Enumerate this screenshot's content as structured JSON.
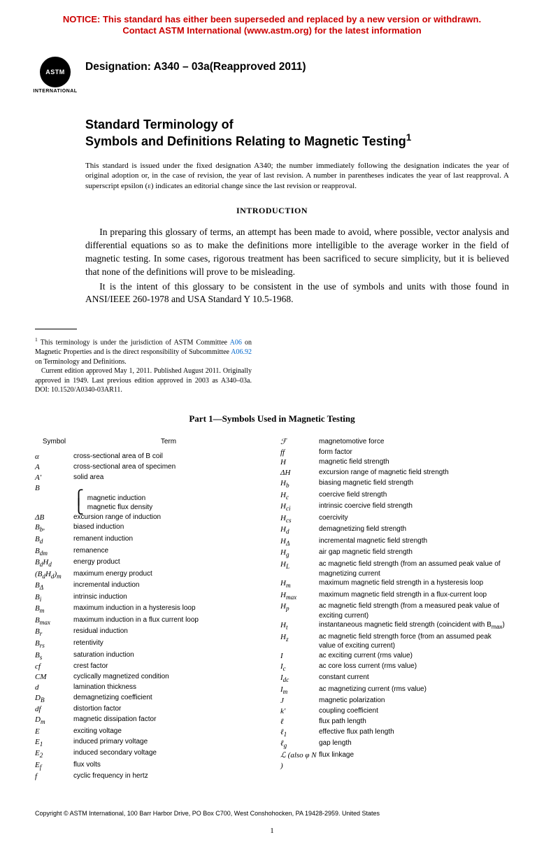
{
  "notice": {
    "line1": "NOTICE: This standard has either been superseded and replaced by a new version or withdrawn.",
    "line2": "Contact ASTM International (www.astm.org) for the latest information",
    "color": "#cc0000"
  },
  "logo": {
    "text": "ASTM",
    "label": "INTERNATIONAL"
  },
  "designation": "Designation: A340 – 03a(Reapproved 2011)",
  "title": {
    "l1": "Standard Terminology of",
    "l2": "Symbols and Definitions Relating to Magnetic Testing",
    "sup": "1"
  },
  "issuance": "This standard is issued under the fixed designation A340; the number immediately following the designation indicates the year of original adoption or, in the case of revision, the year of last revision. A number in parentheses indicates the year of last reapproval. A superscript epsilon (ε) indicates an editorial change since the last revision or reapproval.",
  "intro": {
    "head": "INTRODUCTION",
    "p1": "In preparing this glossary of terms, an attempt has been made to avoid, where possible, vector analysis and differential equations so as to make the definitions more intelligible to the average worker in the field of magnetic testing. In some cases, rigorous treatment has been sacrificed to secure simplicity, but it is believed that none of the definitions will prove to be misleading.",
    "p2": "It is the intent of this glossary to be consistent in the use of symbols and units with those found in ANSI/IEEE 260-1978 and USA Standard Y 10.5-1968."
  },
  "footnote": {
    "p1a": "This terminology is under the jurisdiction of ASTM Committee ",
    "a06": "A06",
    "p1b": " on Magnetic Properties and is the direct responsibility of Subcommittee ",
    "a0692": "A06.92",
    "p1c": " on Terminology and Definitions.",
    "p2": "Current edition approved May 1, 2011. Published August 2011. Originally approved in 1949. Last previous edition approved in 2003 as A340–03a. DOI: 10.1520/A0340-03AR11."
  },
  "part_head": "Part 1—Symbols Used in Magnetic Testing",
  "colhead": {
    "sym": "Symbol",
    "term": "Term"
  },
  "left": [
    {
      "s": "α",
      "t": "cross-sectional area of B coil"
    },
    {
      "s": "A",
      "t": "cross-sectional area of specimen"
    },
    {
      "s": "A′",
      "t": "solid area"
    },
    {
      "s": "B",
      "t": ""
    },
    {
      "s": "",
      "t": "magnetic induction",
      "brace": "top"
    },
    {
      "s": "",
      "t": "magnetic flux density",
      "brace": "bot"
    },
    {
      "s": "ΔB",
      "t": "excursion range of induction"
    },
    {
      "s": "B<sub>b</sub>,",
      "t": "biased induction"
    },
    {
      "s": "B<sub>d</sub>",
      "t": "remanent induction"
    },
    {
      "s": "B<sub>dm</sub>",
      "t": "remanence"
    },
    {
      "s": "B<sub>d</sub>H<sub>d</sub>",
      "t": "energy product"
    },
    {
      "s": "(B<sub>d</sub>H<sub>d</sub>)<sub>m</sub>",
      "t": "maximum energy product"
    },
    {
      "s": "B<sub>Δ</sub>",
      "t": "incremental induction"
    },
    {
      "s": "B<sub>i</sub>",
      "t": "intrinsic induction"
    },
    {
      "s": "B<sub>m</sub>",
      "t": "maximum induction in a hysteresis loop"
    },
    {
      "s": "B<sub>max</sub>",
      "t": "maximum induction in a flux current loop"
    },
    {
      "s": "B<sub>r</sub>",
      "t": "residual induction"
    },
    {
      "s": "B<sub>rs</sub>",
      "t": "retentivity"
    },
    {
      "s": "B<sub>s</sub>",
      "t": "saturation induction"
    },
    {
      "s": "cf",
      "t": "crest factor"
    },
    {
      "s": "CM",
      "t": "cyclically magnetized condition"
    },
    {
      "s": "d",
      "t": "lamination thickness"
    },
    {
      "s": "D<sub>B</sub>",
      "t": "demagnetizing coefficient"
    },
    {
      "s": "df",
      "t": "distortion factor"
    },
    {
      "s": "D<sub>m</sub>",
      "t": "magnetic dissipation factor"
    },
    {
      "s": "E",
      "t": "exciting voltage"
    },
    {
      "s": "E<sub>1</sub>",
      "t": "induced primary voltage"
    },
    {
      "s": "E<sub>2</sub>",
      "t": "induced secondary voltage"
    },
    {
      "s": "E<sub>f</sub>",
      "t": "flux volts"
    },
    {
      "s": "f",
      "t": "cyclic frequency in hertz"
    }
  ],
  "right": [
    {
      "s": "ℱ",
      "t": "magnetomotive force"
    },
    {
      "s": "ff",
      "t": "form factor"
    },
    {
      "s": "H",
      "t": "magnetic field strength"
    },
    {
      "s": "ΔH",
      "t": "excursion range of magnetic field strength"
    },
    {
      "s": "H<sub>b</sub>",
      "t": "biasing magnetic field strength"
    },
    {
      "s": "H<sub>c</sub>",
      "t": "coercive field strength"
    },
    {
      "s": "H<sub>ci</sub>",
      "t": "intrinsic coercive field strength"
    },
    {
      "s": "H<sub>cs</sub>",
      "t": "coercivity"
    },
    {
      "s": "H<sub>d</sub>",
      "t": "demagnetizing field strength"
    },
    {
      "s": "H<sub>Δ</sub>",
      "t": "incremental magnetic field strength"
    },
    {
      "s": "H<sub>g</sub>",
      "t": "air gap magnetic field strength"
    },
    {
      "s": "H<sub>L</sub>",
      "t": "ac magnetic field strength (from an assumed peak value of magnetizing current"
    },
    {
      "s": "H<sub>m</sub>",
      "t": "maximum magnetic field strength in a hysteresis loop"
    },
    {
      "s": "H<sub>max</sub>",
      "t": "maximum magnetic field strength in a flux-current loop"
    },
    {
      "s": "H<sub>p</sub>",
      "t": "ac magnetic field strength (from a measured peak value of exciting current)"
    },
    {
      "s": "H<sub>t</sub>",
      "t": "instantaneous magnetic field strength (coincident with B<sub>max</sub>)"
    },
    {
      "s": "H<sub>z</sub>",
      "t": "ac magnetic field strength force (from an assumed peak value of exciting current)"
    },
    {
      "s": "I",
      "t": "ac exciting current (rms value)"
    },
    {
      "s": "I<sub>c</sub>",
      "t": "ac core loss current (rms value)"
    },
    {
      "s": "I<sub>dc</sub>",
      "t": "constant current"
    },
    {
      "s": "I<sub>m</sub>",
      "t": "ac magnetizing current (rms value)"
    },
    {
      "s": "J",
      "t": "magnetic polarization"
    },
    {
      "s": "k′",
      "t": "coupling coefficient"
    },
    {
      "s": "ℓ",
      "t": "flux path length"
    },
    {
      "s": "ℓ<sub>1</sub>",
      "t": "effective flux path length"
    },
    {
      "s": "ℓ<sub>g</sub>",
      "t": "gap length"
    },
    {
      "s": "ℒ (also φ N )",
      "t": "flux linkage"
    }
  ],
  "copyright": "Copyright © ASTM International, 100 Barr Harbor Drive, PO Box C700, West Conshohocken, PA 19428-2959. United States",
  "pagenum": "1"
}
